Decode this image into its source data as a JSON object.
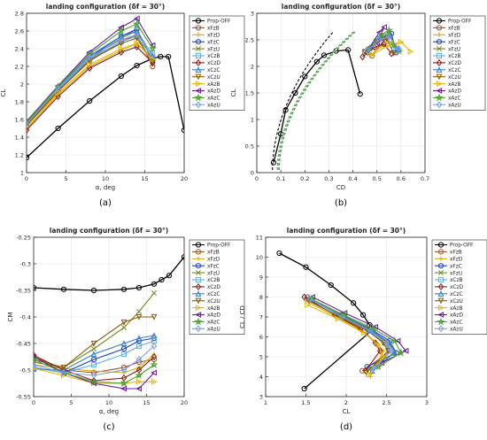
{
  "colors": {
    "prop": "#000000",
    "series": [
      "#a0522d",
      "#d4b106",
      "#1f3fc4",
      "#6b8e23",
      "#5ab0f0",
      "#8b1a1a",
      "#2f7fcf",
      "#8b5a00",
      "#e6b800",
      "#6a1b9a",
      "#4aa02c",
      "#7fa0e0"
    ]
  },
  "chart_data": [
    {
      "type": "line",
      "title": "landing configuration (δf = 30°)",
      "subplot_label": "(a)",
      "xlabel": "α, deg",
      "ylabel": "CL",
      "xlim": [
        0,
        20
      ],
      "ylim": [
        1.0,
        2.8
      ],
      "xticks": [
        "0",
        "5",
        "10",
        "15",
        "20"
      ],
      "yticks": [
        "1",
        "1.2",
        "1.4",
        "1.6",
        "1.8",
        "2",
        "2.2",
        "2.4",
        "2.6",
        "2.8"
      ],
      "grid": true,
      "legend": "right",
      "series": [
        {
          "name": "Prop-OFF",
          "x": [
            0,
            4,
            8,
            12,
            14,
            16,
            17,
            18,
            20
          ],
          "y": [
            1.17,
            1.5,
            1.81,
            2.09,
            2.21,
            2.29,
            2.31,
            2.31,
            1.48
          ]
        },
        {
          "name": "xFzB",
          "x": [
            0,
            4,
            8,
            12,
            14,
            16
          ],
          "y": [
            1.52,
            1.92,
            2.26,
            2.48,
            2.56,
            2.2
          ]
        },
        {
          "name": "xFzD",
          "x": [
            0,
            4,
            8,
            12,
            14,
            16
          ],
          "y": [
            1.5,
            1.88,
            2.2,
            2.38,
            2.46,
            2.3
          ]
        },
        {
          "name": "xFzC",
          "x": [
            0,
            4,
            8,
            12,
            14,
            16
          ],
          "y": [
            1.54,
            1.94,
            2.3,
            2.54,
            2.62,
            2.26
          ]
        },
        {
          "name": "xFzU",
          "x": [
            0,
            4,
            8,
            12,
            14,
            16
          ],
          "y": [
            1.53,
            1.93,
            2.28,
            2.52,
            2.6,
            2.28
          ]
        },
        {
          "name": "xCzB",
          "x": [
            0,
            4,
            8,
            12,
            14,
            16
          ],
          "y": [
            1.55,
            1.94,
            2.28,
            2.48,
            2.54,
            2.3
          ]
        },
        {
          "name": "xCzD",
          "x": [
            0,
            4,
            8,
            12,
            14,
            16
          ],
          "y": [
            1.48,
            1.86,
            2.18,
            2.36,
            2.42,
            2.24
          ]
        },
        {
          "name": "xCzC",
          "x": [
            0,
            4,
            8,
            12,
            14,
            16
          ],
          "y": [
            1.56,
            1.96,
            2.32,
            2.54,
            2.6,
            2.32
          ]
        },
        {
          "name": "xCzU",
          "x": [
            0,
            4,
            8,
            12,
            14,
            16
          ],
          "y": [
            1.54,
            1.92,
            2.27,
            2.46,
            2.52,
            2.25
          ]
        },
        {
          "name": "xAzB",
          "x": [
            0,
            4,
            8,
            12,
            14,
            16
          ],
          "y": [
            1.52,
            1.9,
            2.22,
            2.4,
            2.46,
            2.28
          ]
        },
        {
          "name": "xAzD",
          "x": [
            0,
            4,
            8,
            12,
            14,
            16
          ],
          "y": [
            1.58,
            1.98,
            2.36,
            2.64,
            2.74,
            2.44
          ]
        },
        {
          "name": "xAzC",
          "x": [
            0,
            4,
            8,
            12,
            14,
            16
          ],
          "y": [
            1.57,
            1.97,
            2.34,
            2.6,
            2.68,
            2.4
          ]
        },
        {
          "name": "xAzU",
          "x": [
            0,
            4,
            8,
            12,
            14,
            16
          ],
          "y": [
            1.55,
            1.95,
            2.3,
            2.5,
            2.56,
            2.34
          ]
        }
      ]
    },
    {
      "type": "scatter",
      "title": "landing configuration (δf = 30°)",
      "subplot_label": "(b)",
      "xlabel": "CD",
      "ylabel": "CL",
      "xlim": [
        0,
        0.7
      ],
      "ylim": [
        0,
        3.0
      ],
      "xticks": [
        "0",
        "0.1",
        "0.2",
        "0.3",
        "0.4",
        "0.5",
        "0.6",
        "0.7"
      ],
      "yticks": [
        "0",
        "0.5",
        "1",
        "1.5",
        "2",
        "2.5",
        "3"
      ],
      "grid": true,
      "legend": "right",
      "series": [
        {
          "name": "Prop-OFF",
          "x": [
            0.07,
            0.1,
            0.12,
            0.16,
            0.2,
            0.25,
            0.28,
            0.33,
            0.38,
            0.43
          ],
          "y": [
            0.19,
            0.73,
            1.18,
            1.5,
            1.81,
            2.09,
            2.21,
            2.29,
            2.31,
            1.48
          ]
        },
        {
          "name": "xFzB",
          "x": [
            0.46,
            0.5,
            0.54,
            0.48
          ],
          "y": [
            2.26,
            2.48,
            2.56,
            2.2
          ]
        },
        {
          "name": "xFzD",
          "x": [
            0.47,
            0.52,
            0.56,
            0.6
          ],
          "y": [
            2.2,
            2.38,
            2.46,
            2.3
          ]
        },
        {
          "name": "xFzC",
          "x": [
            0.46,
            0.52,
            0.56,
            0.58
          ],
          "y": [
            2.3,
            2.54,
            2.62,
            2.26
          ]
        },
        {
          "name": "xFzU",
          "x": [
            0.46,
            0.51,
            0.55,
            0.59
          ],
          "y": [
            2.28,
            2.52,
            2.6,
            2.28
          ]
        },
        {
          "name": "xCzB",
          "x": [
            0.45,
            0.5,
            0.54,
            0.58
          ],
          "y": [
            2.28,
            2.48,
            2.54,
            2.3
          ]
        },
        {
          "name": "xCzD",
          "x": [
            0.44,
            0.49,
            0.53,
            0.56
          ],
          "y": [
            2.18,
            2.36,
            2.42,
            2.24
          ]
        },
        {
          "name": "xCzC",
          "x": [
            0.46,
            0.51,
            0.55,
            0.59
          ],
          "y": [
            2.32,
            2.54,
            2.6,
            2.32
          ]
        },
        {
          "name": "xCzU",
          "x": [
            0.45,
            0.5,
            0.54,
            0.57
          ],
          "y": [
            2.27,
            2.46,
            2.52,
            2.25
          ]
        },
        {
          "name": "xAzB",
          "x": [
            0.48,
            0.55,
            0.6,
            0.64
          ],
          "y": [
            2.22,
            2.4,
            2.46,
            2.28
          ]
        },
        {
          "name": "xAzD",
          "x": [
            0.47,
            0.51,
            0.53,
            0.5
          ],
          "y": [
            2.36,
            2.64,
            2.74,
            2.44
          ]
        },
        {
          "name": "xAzC",
          "x": [
            0.47,
            0.52,
            0.55,
            0.57
          ],
          "y": [
            2.34,
            2.6,
            2.68,
            2.4
          ]
        },
        {
          "name": "xAzU",
          "x": [
            0.46,
            0.51,
            0.55,
            0.59
          ],
          "y": [
            2.3,
            2.5,
            2.56,
            2.34
          ]
        }
      ]
    },
    {
      "type": "line",
      "title": "landing configuration (δf = 30°)",
      "subplot_label": "(c)",
      "xlabel": "α, deg",
      "ylabel": "CM",
      "xlim": [
        0,
        20
      ],
      "ylim": [
        -0.55,
        -0.25
      ],
      "xticks": [
        "0",
        "5",
        "10",
        "15",
        "20"
      ],
      "yticks": [
        "-0.25",
        "-0.3",
        "-0.35",
        "-0.4",
        "-0.45",
        "-0.5",
        "-0.55"
      ],
      "grid": true,
      "legend": "right",
      "series": [
        {
          "name": "Prop-OFF",
          "x": [
            0,
            4,
            8,
            12,
            14,
            16,
            17,
            18,
            20
          ],
          "y": [
            -0.345,
            -0.348,
            -0.35,
            -0.348,
            -0.345,
            -0.338,
            -0.33,
            -0.322,
            -0.287
          ]
        },
        {
          "name": "xFzB",
          "x": [
            0,
            4,
            8,
            12,
            14,
            16
          ],
          "y": [
            -0.475,
            -0.5,
            -0.505,
            -0.495,
            -0.485,
            -0.48
          ]
        },
        {
          "name": "xFzD",
          "x": [
            0,
            4,
            8,
            12,
            14,
            16
          ],
          "y": [
            -0.49,
            -0.497,
            -0.502,
            -0.505,
            -0.495,
            -0.47
          ]
        },
        {
          "name": "xFzC",
          "x": [
            0,
            4,
            8,
            12,
            14,
            16
          ],
          "y": [
            -0.495,
            -0.505,
            -0.48,
            -0.46,
            -0.445,
            -0.44
          ]
        },
        {
          "name": "xFzU",
          "x": [
            0,
            4,
            8,
            12,
            14,
            16
          ],
          "y": [
            -0.48,
            -0.495,
            -0.46,
            -0.42,
            -0.39,
            -0.355
          ]
        },
        {
          "name": "xCzB",
          "x": [
            0,
            4,
            8,
            12,
            14,
            16
          ],
          "y": [
            -0.495,
            -0.505,
            -0.49,
            -0.47,
            -0.455,
            -0.445
          ]
        },
        {
          "name": "xCzD",
          "x": [
            0,
            4,
            8,
            12,
            14,
            16
          ],
          "y": [
            -0.472,
            -0.5,
            -0.52,
            -0.515,
            -0.5,
            -0.475
          ]
        },
        {
          "name": "xCzC",
          "x": [
            0,
            4,
            8,
            12,
            14,
            16
          ],
          "y": [
            -0.498,
            -0.5,
            -0.47,
            -0.45,
            -0.44,
            -0.435
          ]
        },
        {
          "name": "xCzU",
          "x": [
            0,
            4,
            8,
            12,
            14,
            16
          ],
          "y": [
            -0.485,
            -0.495,
            -0.45,
            -0.41,
            -0.4,
            -0.4
          ]
        },
        {
          "name": "xAzB",
          "x": [
            0,
            4,
            8,
            12,
            14,
            16
          ],
          "y": [
            -0.497,
            -0.51,
            -0.525,
            -0.525,
            -0.522,
            -0.522
          ]
        },
        {
          "name": "xAzD",
          "x": [
            0,
            4,
            8,
            12,
            14,
            16
          ],
          "y": [
            -0.475,
            -0.505,
            -0.525,
            -0.535,
            -0.535,
            -0.505
          ]
        },
        {
          "name": "xAzC",
          "x": [
            0,
            4,
            8,
            12,
            14,
            16
          ],
          "y": [
            -0.48,
            -0.505,
            -0.522,
            -0.525,
            -0.51,
            -0.49
          ]
        },
        {
          "name": "xAzU",
          "x": [
            0,
            4,
            8,
            12,
            14,
            16
          ],
          "y": [
            -0.49,
            -0.505,
            -0.51,
            -0.5,
            -0.48,
            -0.455
          ]
        }
      ]
    },
    {
      "type": "scatter",
      "title": "landing configuration (δf = 30°)",
      "subplot_label": "(d)",
      "xlabel": "CL",
      "ylabel": "CL / CD",
      "xlim": [
        1,
        3
      ],
      "ylim": [
        3,
        11
      ],
      "xticks": [
        "1",
        "1.5",
        "2",
        "2.5",
        "3"
      ],
      "yticks": [
        "3",
        "4",
        "5",
        "6",
        "7",
        "8",
        "9",
        "10",
        "11"
      ],
      "grid": true,
      "legend": "right",
      "series": [
        {
          "name": "Prop-OFF",
          "x": [
            1.17,
            1.5,
            1.81,
            2.09,
            2.21,
            2.29,
            2.31,
            1.48
          ],
          "y": [
            10.2,
            9.5,
            8.6,
            7.7,
            7.1,
            6.6,
            6.3,
            3.4
          ]
        },
        {
          "name": "xFzB",
          "x": [
            1.52,
            1.92,
            2.26,
            2.48,
            2.56,
            2.2
          ],
          "y": [
            8.0,
            7.1,
            6.4,
            5.7,
            5.3,
            4.3
          ]
        },
        {
          "name": "xFzD",
          "x": [
            1.5,
            1.88,
            2.2,
            2.38,
            2.46,
            2.3
          ],
          "y": [
            7.8,
            7.0,
            6.3,
            5.7,
            5.3,
            4.0
          ]
        },
        {
          "name": "xFzC",
          "x": [
            1.54,
            1.94,
            2.3,
            2.54,
            2.62,
            2.26
          ],
          "y": [
            7.9,
            7.1,
            6.4,
            5.8,
            5.2,
            4.5
          ]
        },
        {
          "name": "xFzU",
          "x": [
            1.53,
            1.93,
            2.28,
            2.52,
            2.6,
            2.28
          ],
          "y": [
            7.9,
            7.1,
            6.4,
            5.7,
            5.2,
            4.4
          ]
        },
        {
          "name": "xCzB",
          "x": [
            1.55,
            1.94,
            2.28,
            2.48,
            2.54,
            2.3
          ],
          "y": [
            7.9,
            7.0,
            6.3,
            5.7,
            5.3,
            4.3
          ]
        },
        {
          "name": "xCzD",
          "x": [
            1.48,
            1.86,
            2.18,
            2.36,
            2.42,
            2.24
          ],
          "y": [
            8.0,
            7.1,
            6.4,
            5.7,
            5.3,
            4.3
          ]
        },
        {
          "name": "xCzC",
          "x": [
            1.56,
            1.96,
            2.32,
            2.54,
            2.6,
            2.32
          ],
          "y": [
            7.9,
            7.0,
            6.3,
            5.7,
            5.2,
            4.3
          ]
        },
        {
          "name": "xCzU",
          "x": [
            1.54,
            1.92,
            2.27,
            2.46,
            2.52,
            2.25
          ],
          "y": [
            7.8,
            7.0,
            6.3,
            5.7,
            5.3,
            4.2
          ]
        },
        {
          "name": "xAzB",
          "x": [
            1.52,
            1.9,
            2.22,
            2.4,
            2.46,
            2.28
          ],
          "y": [
            7.6,
            6.9,
            6.2,
            5.6,
            5.0,
            4.1
          ]
        },
        {
          "name": "xAzD",
          "x": [
            1.58,
            1.98,
            2.36,
            2.64,
            2.74,
            2.44
          ],
          "y": [
            8.0,
            7.2,
            6.5,
            5.8,
            5.3,
            4.7
          ]
        },
        {
          "name": "xAzC",
          "x": [
            1.57,
            1.97,
            2.34,
            2.6,
            2.68,
            2.4
          ],
          "y": [
            7.9,
            7.1,
            6.4,
            5.8,
            5.2,
            4.5
          ]
        },
        {
          "name": "xAzU",
          "x": [
            1.55,
            1.95,
            2.3,
            2.5,
            2.56,
            2.34
          ],
          "y": [
            7.9,
            7.0,
            6.3,
            5.7,
            5.3,
            4.4
          ]
        }
      ]
    }
  ]
}
